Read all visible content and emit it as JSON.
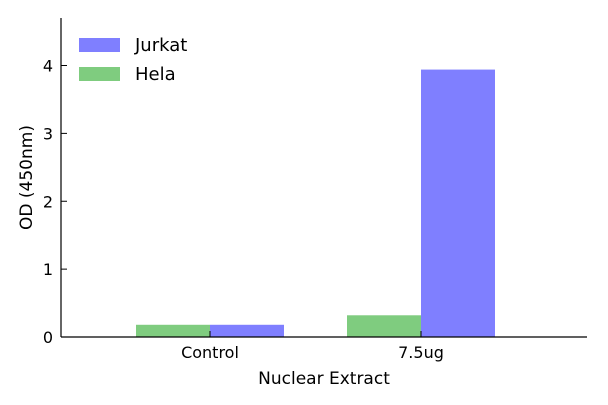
{
  "chart_data": {
    "type": "bar",
    "categories": [
      "Control",
      "7.5ug"
    ],
    "series": [
      {
        "name": "Hela",
        "values": [
          0.18,
          0.32
        ],
        "color": "#7fcc7f"
      },
      {
        "name": "Jurkat",
        "values": [
          0.18,
          3.94
        ],
        "color": "#7f7fff"
      }
    ],
    "legend_order": [
      "Jurkat",
      "Hela"
    ],
    "xlabel": "Nuclear Extract",
    "ylabel": "OD (450nm)",
    "ylim": [
      0,
      4.7
    ],
    "yticks": [
      0,
      1,
      2,
      3,
      4
    ],
    "grid": false,
    "legend_position": "top-left"
  }
}
